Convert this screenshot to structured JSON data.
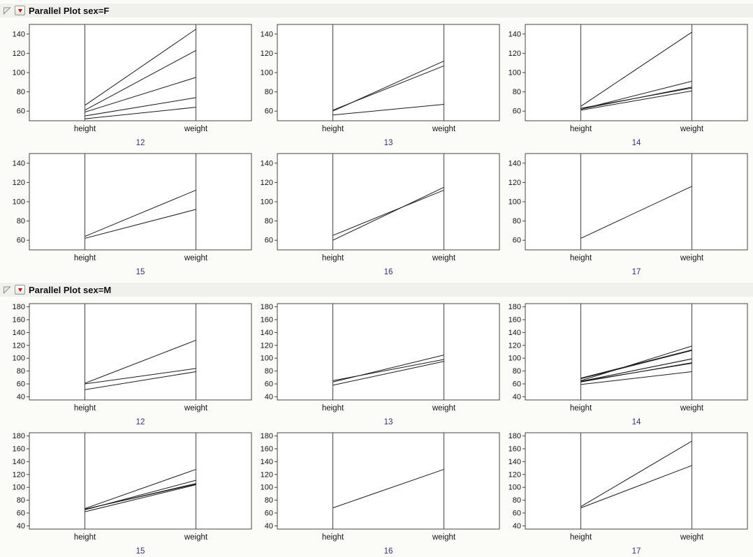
{
  "icons": {
    "disclosure_open_icon": "gray-open-triangle",
    "red_triangle_menu_icon": "red-down-triangle"
  },
  "colors": {
    "line": "#1a1a1a",
    "frame": "#454545",
    "red_triangle": "#c00000",
    "group_label": "#32326e",
    "header_background": "#f0f0ec"
  },
  "chart_data": [
    {
      "type": "line",
      "chart_kind": "parallel-coordinates-trellis",
      "title": "Parallel Plot sex=F",
      "axes": [
        "height",
        "weight"
      ],
      "group_by": "age",
      "ylim": [
        50,
        150
      ],
      "yticks": [
        60,
        80,
        100,
        120,
        140
      ],
      "panels": [
        {
          "group": "12",
          "lines": [
            [
              59,
              95
            ],
            [
              61,
              123
            ],
            [
              55,
              74
            ],
            [
              66,
              145
            ],
            [
              52,
              64
            ]
          ]
        },
        {
          "group": "13",
          "lines": [
            [
              60,
              112
            ],
            [
              61,
              107
            ],
            [
              56,
              67
            ]
          ]
        },
        {
          "group": "14",
          "lines": [
            [
              61,
              81
            ],
            [
              62,
              91
            ],
            [
              65,
              142
            ],
            [
              63,
              84
            ],
            [
              62,
              85
            ]
          ]
        },
        {
          "group": "15",
          "lines": [
            [
              62,
              92
            ],
            [
              64,
              112
            ]
          ]
        },
        {
          "group": "16",
          "lines": [
            [
              65,
              112
            ],
            [
              60,
              115
            ]
          ]
        },
        {
          "group": "17",
          "lines": [
            [
              62,
              116
            ]
          ]
        }
      ]
    },
    {
      "type": "line",
      "chart_kind": "parallel-coordinates-trellis",
      "title": "Parallel Plot sex=M",
      "axes": [
        "height",
        "weight"
      ],
      "group_by": "age",
      "ylim": [
        35,
        185
      ],
      "yticks": [
        40,
        60,
        80,
        100,
        120,
        140,
        160,
        180
      ],
      "panels": [
        {
          "group": "12",
          "lines": [
            [
              60,
              84
            ],
            [
              61,
              128
            ],
            [
              51,
              79
            ]
          ]
        },
        {
          "group": "13",
          "lines": [
            [
              65,
              98
            ],
            [
              63,
              105
            ],
            [
              58,
              95
            ]
          ]
        },
        {
          "group": "14",
          "lines": [
            [
              59,
              79
            ],
            [
              63,
              93
            ],
            [
              64,
              99
            ],
            [
              65,
              119
            ],
            [
              64,
              92
            ],
            [
              68,
              112
            ],
            [
              64,
              99
            ],
            [
              69,
              113
            ]
          ]
        },
        {
          "group": "15",
          "lines": [
            [
              67,
              128
            ],
            [
              65,
              111
            ],
            [
              66,
              105
            ],
            [
              62,
              104
            ],
            [
              66,
              106
            ]
          ]
        },
        {
          "group": "16",
          "lines": [
            [
              68,
              128
            ]
          ]
        },
        {
          "group": "17",
          "lines": [
            [
              68,
              134
            ],
            [
              70,
              172
            ]
          ]
        }
      ]
    }
  ]
}
